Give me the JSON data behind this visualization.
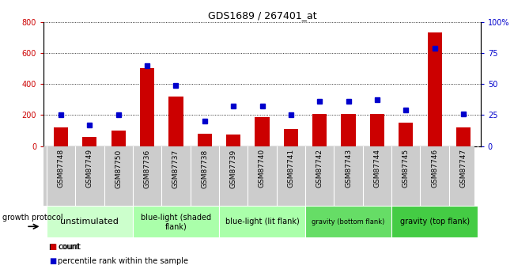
{
  "title": "GDS1689 / 267401_at",
  "samples": [
    "GSM87748",
    "GSM87749",
    "GSM87750",
    "GSM87736",
    "GSM87737",
    "GSM87738",
    "GSM87739",
    "GSM87740",
    "GSM87741",
    "GSM87742",
    "GSM87743",
    "GSM87744",
    "GSM87745",
    "GSM87746",
    "GSM87747"
  ],
  "counts": [
    120,
    60,
    100,
    500,
    320,
    80,
    75,
    185,
    110,
    205,
    205,
    205,
    150,
    730,
    120
  ],
  "percentiles": [
    25,
    17,
    25,
    65,
    49,
    20,
    32,
    32,
    25,
    36,
    36,
    37,
    29,
    79,
    26
  ],
  "groups": [
    {
      "label": "unstimulated",
      "indices": [
        0,
        1,
        2
      ],
      "color": "#ccffcc",
      "fontsize": 8
    },
    {
      "label": "blue-light (shaded\nflank)",
      "indices": [
        3,
        4,
        5
      ],
      "color": "#aaffaa",
      "fontsize": 7
    },
    {
      "label": "blue-light (lit flank)",
      "indices": [
        6,
        7,
        8
      ],
      "color": "#aaffaa",
      "fontsize": 7
    },
    {
      "label": "gravity (bottom flank)",
      "indices": [
        9,
        10,
        11
      ],
      "color": "#66dd66",
      "fontsize": 6
    },
    {
      "label": "gravity (top flank)",
      "indices": [
        12,
        13,
        14
      ],
      "color": "#44cc44",
      "fontsize": 7
    }
  ],
  "bar_color": "#cc0000",
  "dot_color": "#0000cc",
  "left_ylim": [
    0,
    800
  ],
  "right_ylim": [
    0,
    100
  ],
  "left_yticks": [
    0,
    200,
    400,
    600,
    800
  ],
  "right_yticks": [
    0,
    25,
    50,
    75,
    100
  ],
  "right_yticklabels": [
    "0",
    "25",
    "50",
    "75",
    "100%"
  ],
  "tick_fontsize": 7,
  "sample_bg_color": "#cccccc",
  "growth_protocol_label": "growth protocol",
  "legend_count": "count",
  "legend_pct": "percentile rank within the sample"
}
